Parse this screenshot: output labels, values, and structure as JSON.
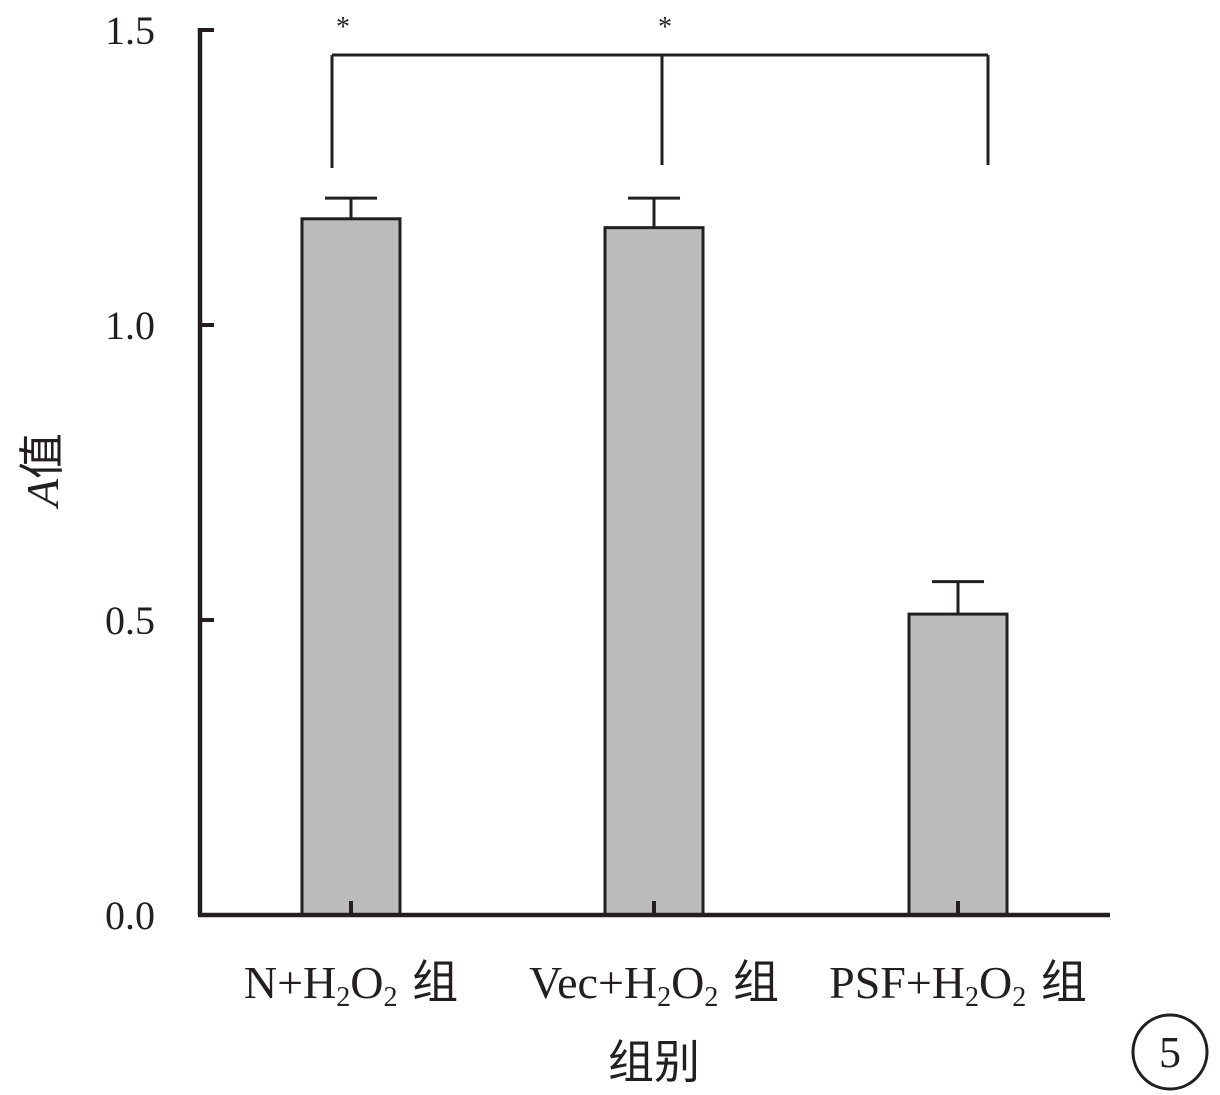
{
  "chart_data": {
    "type": "bar",
    "categories": [
      {
        "main": "N+H",
        "sub1": "2",
        "mid": "O",
        "sub2": "2",
        "suffix": " 组"
      },
      {
        "main": "Vec+H",
        "sub1": "2",
        "mid": "O",
        "sub2": "2",
        "suffix": " 组"
      },
      {
        "main": "PSF+H",
        "sub1": "2",
        "mid": "O",
        "sub2": "2",
        "suffix": " 组"
      }
    ],
    "values": [
      1.18,
      1.165,
      0.51
    ],
    "errors": [
      0.035,
      0.05,
      0.055
    ],
    "ylim": [
      0,
      1.5
    ],
    "yticks": [
      "0.0",
      "0.5",
      "1.0",
      "1.5"
    ],
    "ylabel_italic": "A",
    "ylabel_rest": "值",
    "xlabel": "组别",
    "significance": [
      {
        "from": 0,
        "to": 2,
        "label": "*"
      },
      {
        "from": 1,
        "to": 2,
        "label": "*"
      }
    ],
    "bar_color": "#bcbcbc",
    "panel_label": "5"
  }
}
